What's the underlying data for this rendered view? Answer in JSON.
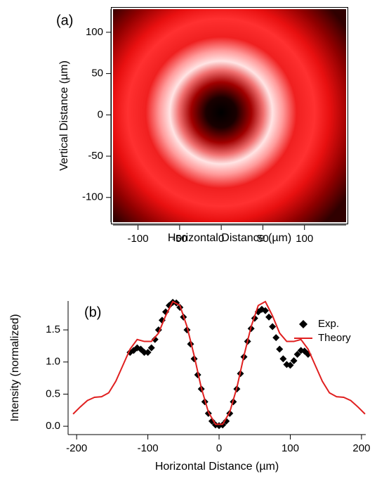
{
  "chart_data": [
    {
      "type": "image",
      "label": "(a)",
      "xlabel": "Horizontal Distance (µm)",
      "ylabel": "Vertical Distance (µm)",
      "xlim": [
        -130,
        150
      ],
      "ylim": [
        -130,
        128
      ],
      "xticks": [
        -100,
        -50,
        0,
        50,
        100
      ],
      "yticks": [
        -100,
        -50,
        0,
        50,
        100
      ]
    },
    {
      "type": "line",
      "label": "(b)",
      "xlabel": "Horizontal Distance (µm)",
      "ylabel": "Intensity (normalized)",
      "xlim": [
        -212,
        206
      ],
      "ylim": [
        -0.13,
        1.95
      ],
      "xticks": [
        -200,
        -100,
        0,
        100,
        200
      ],
      "yticks": [
        {
          "value": 0,
          "label": "0.0"
        },
        0.5,
        {
          "value": 1,
          "label": "1.0"
        },
        1.5
      ],
      "legend": "upper right",
      "series": [
        {
          "name": "Exp.",
          "type": "scatter",
          "color": "#000000",
          "x": [
            -125,
            -120,
            -115,
            -110,
            -105,
            -100,
            -95,
            -90,
            -85,
            -80,
            -75,
            -70,
            -65,
            -60,
            -55,
            -50,
            -45,
            -40,
            -35,
            -30,
            -25,
            -20,
            -15,
            -10,
            -5,
            0,
            5,
            10,
            15,
            20,
            25,
            30,
            35,
            40,
            45,
            50,
            55,
            60,
            65,
            70,
            75,
            80,
            85,
            90,
            95,
            100,
            105,
            110,
            115,
            120,
            125
          ],
          "values": [
            1.15,
            1.18,
            1.22,
            1.2,
            1.15,
            1.15,
            1.22,
            1.35,
            1.5,
            1.65,
            1.78,
            1.88,
            1.93,
            1.92,
            1.85,
            1.7,
            1.5,
            1.28,
            1.05,
            0.8,
            0.58,
            0.38,
            0.2,
            0.08,
            0.02,
            0.01,
            0.02,
            0.08,
            0.2,
            0.38,
            0.58,
            0.82,
            1.08,
            1.32,
            1.52,
            1.68,
            1.78,
            1.82,
            1.8,
            1.7,
            1.55,
            1.38,
            1.2,
            1.05,
            0.96,
            0.95,
            1.02,
            1.12,
            1.18,
            1.17,
            1.12
          ]
        },
        {
          "name": "Theory",
          "type": "line",
          "color": "#e02020",
          "x": [
            -205,
            -195,
            -185,
            -175,
            -165,
            -155,
            -145,
            -135,
            -125,
            -115,
            -105,
            -95,
            -85,
            -75,
            -65,
            -55,
            -45,
            -35,
            -25,
            -15,
            -5,
            5,
            15,
            25,
            35,
            45,
            55,
            65,
            75,
            85,
            95,
            105,
            115,
            125,
            135,
            145,
            155,
            165,
            175,
            185,
            195,
            205
          ],
          "values": [
            0.19,
            0.3,
            0.4,
            0.45,
            0.46,
            0.52,
            0.7,
            0.95,
            1.2,
            1.35,
            1.32,
            1.32,
            1.45,
            1.72,
            1.94,
            1.88,
            1.55,
            1.1,
            0.6,
            0.22,
            0.03,
            0.03,
            0.22,
            0.6,
            1.1,
            1.55,
            1.88,
            1.94,
            1.72,
            1.45,
            1.32,
            1.32,
            1.35,
            1.2,
            0.95,
            0.7,
            0.52,
            0.46,
            0.45,
            0.4,
            0.3,
            0.19
          ]
        }
      ]
    }
  ]
}
